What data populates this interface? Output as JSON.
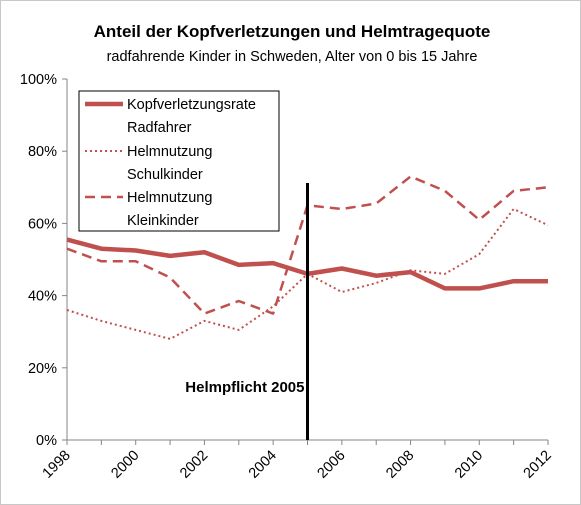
{
  "chart_data": {
    "type": "line",
    "title": "Anteil der Kopfverletzungen und Helmtragequote",
    "subtitle": "radfahrende Kinder in Schweden, Alter von 0 bis 15 Jahre",
    "xlabel": "",
    "ylabel": "",
    "xlim": [
      1998,
      2012
    ],
    "ylim": [
      0,
      100
    ],
    "y_ticks": [
      0,
      20,
      40,
      60,
      80,
      100
    ],
    "y_tick_labels": [
      "0%",
      "20%",
      "40%",
      "60%",
      "80%",
      "100%"
    ],
    "x_ticks": [
      1998,
      2000,
      2002,
      2004,
      2006,
      2008,
      2010,
      2012
    ],
    "x_tick_labels": [
      "1998",
      "2000",
      "2002",
      "2004",
      "2006",
      "2008",
      "2010",
      "2012"
    ],
    "grid": false,
    "legend_position": "top-left",
    "series": [
      {
        "name": "Kopfverletzungsrate Radfahrer",
        "legend_lines": [
          "Kopfverletzungsrate",
          "Radfahrer"
        ],
        "style": "solid-thick",
        "color": "#c0504d",
        "x": [
          1998,
          1999,
          2000,
          2001,
          2002,
          2003,
          2004,
          2005,
          2006,
          2007,
          2008,
          2009,
          2010,
          2011,
          2012
        ],
        "y": [
          55.5,
          53.0,
          52.5,
          51.0,
          52.0,
          48.5,
          49.0,
          46.0,
          47.5,
          45.5,
          46.5,
          42.0,
          42.0,
          44.0,
          44.0
        ]
      },
      {
        "name": "Helmnutzung Schulkinder",
        "legend_lines": [
          "Helmnutzung",
          "Schulkinder"
        ],
        "style": "dotted",
        "color": "#c0504d",
        "x": [
          1998,
          1999,
          2000,
          2001,
          2002,
          2003,
          2004,
          2005,
          2006,
          2007,
          2008,
          2009,
          2010,
          2011,
          2012
        ],
        "y": [
          36.0,
          33.0,
          30.5,
          28.0,
          33.0,
          30.5,
          37.0,
          46.0,
          41.0,
          43.5,
          47.0,
          46.0,
          51.5,
          64.0,
          59.5
        ]
      },
      {
        "name": "Helmnutzung Kleinkinder",
        "legend_lines": [
          "Helmnutzung",
          "Kleinkinder"
        ],
        "style": "dashed",
        "color": "#c0504d",
        "x": [
          1998,
          1999,
          2000,
          2001,
          2002,
          2003,
          2004,
          2005,
          2006,
          2007,
          2008,
          2009,
          2010,
          2011,
          2012
        ],
        "y": [
          53.0,
          49.5,
          49.5,
          45.0,
          35.0,
          38.5,
          35.0,
          65.0,
          64.0,
          65.5,
          73.0,
          69.0,
          61.0,
          69.0,
          70.0
        ]
      }
    ],
    "annotations": [
      {
        "text": "Helmpflicht 2005",
        "x": 2005,
        "type": "vertical-line",
        "color": "#000000"
      }
    ]
  }
}
